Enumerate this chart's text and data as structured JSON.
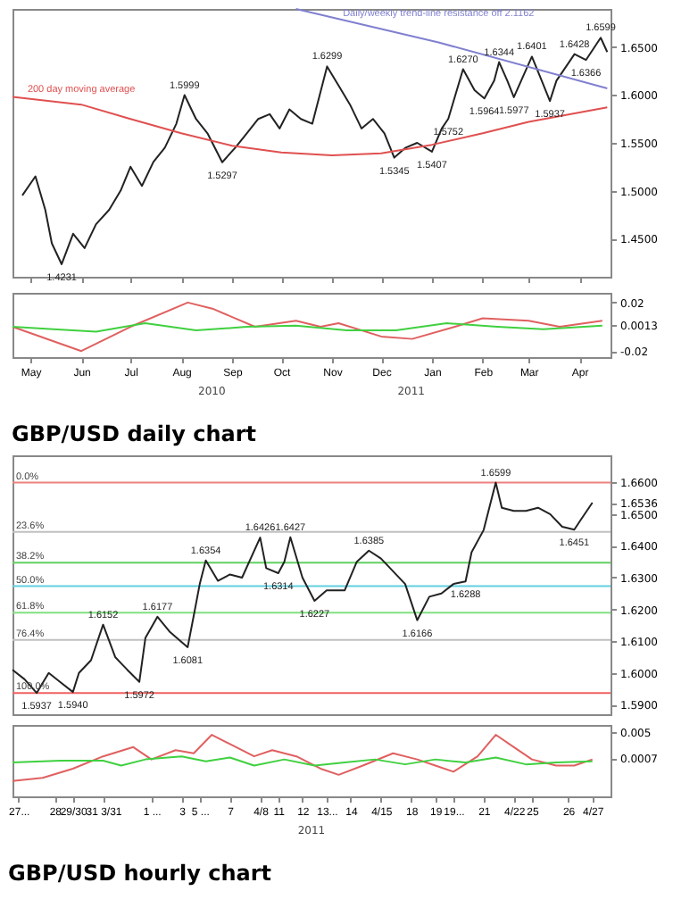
{
  "chart_data": [
    {
      "type": "line",
      "line_style": "solid",
      "xlim": [
        "2010-04-20",
        "2011-04-20"
      ],
      "ylim": [
        1.41,
        1.69
      ],
      "yticks": [
        {
          "value": 1.45,
          "label": "1.4500"
        },
        {
          "value": 1.5,
          "label": "1.5000"
        },
        {
          "value": 1.55,
          "label": "1.5500"
        },
        {
          "value": 1.6,
          "label": "1.6000"
        },
        {
          "value": 1.65,
          "label": "1.6500"
        }
      ],
      "xticks": [
        {
          "value": "2010-05-01",
          "label": null
        },
        {
          "value": "2010-06-01",
          "label": null
        },
        {
          "value": "2010-07-01",
          "label": null
        },
        {
          "value": "2010-08-01",
          "label": null
        },
        {
          "value": "2010-09-01",
          "label": null
        },
        {
          "value": "2010-10-01",
          "label": null
        },
        {
          "value": "2010-11-01",
          "label": null
        },
        {
          "value": "2010-12-01",
          "label": null
        },
        {
          "value": "2011-01-01",
          "label": null
        },
        {
          "value": "2011-02-01",
          "label": null
        },
        {
          "value": "2011-03-01",
          "label": null
        },
        {
          "value": "2011-04-01",
          "label": null
        }
      ],
      "tick_labels": "y",
      "series": [
        {
          "color": "#222222",
          "x": [
            "2010-04-26",
            "2010-05-04",
            "2010-05-10",
            "2010-05-14",
            "2010-05-20",
            "2010-05-27",
            "2010-06-03",
            "2010-06-10",
            "2010-06-18",
            "2010-06-25",
            "2010-07-01",
            "2010-07-08",
            "2010-07-15",
            "2010-07-22",
            "2010-07-29",
            "2010-08-03",
            "2010-08-10",
            "2010-08-17",
            "2010-08-26",
            "2010-09-03",
            "2010-09-10",
            "2010-09-17",
            "2010-09-24",
            "2010-09-30",
            "2010-10-06",
            "2010-10-13",
            "2010-10-20",
            "2010-10-29",
            "2010-11-05",
            "2010-11-12",
            "2010-11-19",
            "2010-11-26",
            "2010-12-03",
            "2010-12-09",
            "2010-12-16",
            "2010-12-23",
            "2011-01-01",
            "2011-01-07",
            "2011-01-11",
            "2011-01-20",
            "2011-01-27",
            "2011-02-02",
            "2011-02-08",
            "2011-02-11",
            "2011-02-16",
            "2011-02-20",
            "2011-03-03",
            "2011-03-09",
            "2011-03-14",
            "2011-03-18",
            "2011-03-22",
            "2011-03-29",
            "2011-04-05",
            "2011-04-14",
            "2011-04-18"
          ],
          "values": [
            1.495,
            1.515,
            1.48,
            1.445,
            1.4231,
            1.455,
            1.44,
            1.465,
            1.48,
            1.5,
            1.525,
            1.505,
            1.53,
            1.545,
            1.57,
            1.5999,
            1.575,
            1.56,
            1.5297,
            1.545,
            1.56,
            1.575,
            1.58,
            1.565,
            1.585,
            1.575,
            1.57,
            1.6299,
            1.61,
            1.59,
            1.565,
            1.575,
            1.56,
            1.5345,
            1.545,
            1.55,
            1.5407,
            1.565,
            1.5752,
            1.627,
            1.605,
            1.5964,
            1.615,
            1.6344,
            1.615,
            1.5977,
            1.6401,
            1.615,
            1.5937,
            1.615,
            1.625,
            1.6428,
            1.6366,
            1.6599,
            1.645
          ]
        },
        {
          "name": "200 day moving average",
          "color": "#e05050",
          "x": [
            "2010-04-20",
            "2010-06-01",
            "2010-07-01",
            "2010-08-01",
            "2010-09-01",
            "2010-10-01",
            "2010-11-01",
            "2010-12-01",
            "2011-01-01",
            "2011-02-01",
            "2011-03-01",
            "2011-04-18"
          ],
          "values": [
            1.598,
            1.59,
            1.575,
            1.56,
            1.547,
            1.54,
            1.537,
            1.539,
            1.548,
            1.56,
            1.572,
            1.587
          ]
        },
        {
          "name": "Daily/weekly trend-line resistance off 2.1162",
          "color": "#8080d0",
          "x": [
            "2010-10-10",
            "2011-01-05",
            "2011-04-18"
          ],
          "values": [
            1.69,
            1.655,
            1.607
          ]
        }
      ],
      "annotations": [
        {
          "text": "1.4231",
          "x": "2010-05-20",
          "y": 1.4231
        },
        {
          "text": "1.5999",
          "x": "2010-08-03",
          "y": 1.5999
        },
        {
          "text": "1.5297",
          "x": "2010-08-26",
          "y": 1.5297
        },
        {
          "text": "1.6299",
          "x": "2010-10-29",
          "y": 1.6299
        },
        {
          "text": "1.5345",
          "x": "2010-12-09",
          "y": 1.5345
        },
        {
          "text": "1.5407",
          "x": "2011-01-01",
          "y": 1.5407
        },
        {
          "text": "1.5752",
          "x": "2011-01-11",
          "y": 1.5752
        },
        {
          "text": "1.6270",
          "x": "2011-01-20",
          "y": 1.627
        },
        {
          "text": "1.5964",
          "x": "2011-02-02",
          "y": 1.5964
        },
        {
          "text": "1.6344",
          "x": "2011-02-11",
          "y": 1.6344
        },
        {
          "text": "1.5977",
          "x": "2011-02-20",
          "y": 1.5977
        },
        {
          "text": "1.6401",
          "x": "2011-03-03",
          "y": 1.6401
        },
        {
          "text": "1.5937",
          "x": "2011-03-14",
          "y": 1.5937
        },
        {
          "text": "1.6428",
          "x": "2011-03-29",
          "y": 1.6428
        },
        {
          "text": "1.6366",
          "x": "2011-04-05",
          "y": 1.6366
        },
        {
          "text": "1.6599",
          "x": "2011-04-14",
          "y": 1.6599
        }
      ]
    },
    {
      "type": "line",
      "line_style": "solid",
      "title": "GBP/USD daily chart",
      "xlim": [
        "2010-04-20",
        "2011-04-20"
      ],
      "ylim": [
        -0.025,
        0.028
      ],
      "yticks": [
        -0.02,
        {
          "value": 0.0013,
          "label": "0.0013"
        },
        0.02
      ],
      "xticks": [
        {
          "value": "2010-05-01",
          "label": "May"
        },
        {
          "value": "2010-06-01",
          "label": "Jun"
        },
        {
          "value": "2010-07-01",
          "label": "Jul"
        },
        {
          "value": "2010-08-01",
          "label": "Aug"
        },
        {
          "value": "2010-09-01",
          "label": "Sep"
        },
        {
          "value": "2010-10-01",
          "label": "Oct"
        },
        {
          "value": "2010-11-01",
          "label": "Nov"
        },
        {
          "value": "2010-12-01",
          "label": "Dec"
        },
        {
          "value": "2011-01-01",
          "label": "Jan"
        },
        {
          "value": "2011-02-01",
          "label": "Feb"
        },
        {
          "value": "2011-03-01",
          "label": "Mar"
        },
        {
          "value": "2011-04-01",
          "label": "Apr"
        }
      ],
      "series": [
        {
          "color": "#e06060",
          "x": [
            "2010-04-20",
            "2010-06-01",
            "2010-07-01",
            "2010-08-05",
            "2010-08-20",
            "2010-09-15",
            "2010-10-10",
            "2010-10-25",
            "2010-11-05",
            "2010-12-01",
            "2010-12-20",
            "2011-01-15",
            "2011-02-01",
            "2011-03-01",
            "2011-03-20",
            "2011-04-15"
          ],
          "values": [
            0,
            -0.02,
            0,
            0.02,
            0.015,
            0,
            0.005,
            0,
            0.003,
            -0.008,
            -0.01,
            0,
            0.007,
            0.005,
            0,
            0.005
          ]
        },
        {
          "color": "#40d040",
          "x": [
            "2010-04-20",
            "2010-05-15",
            "2010-06-10",
            "2010-07-10",
            "2010-08-10",
            "2010-09-10",
            "2010-10-10",
            "2010-11-10",
            "2010-12-10",
            "2011-01-10",
            "2011-02-10",
            "2011-03-10",
            "2011-04-15"
          ],
          "values": [
            0,
            -0.002,
            -0.004,
            0.003,
            -0.003,
            0,
            0.001,
            -0.003,
            -0.003,
            0.003,
            0,
            -0.002,
            0.001
          ]
        }
      ],
      "annotations": [
        "2010",
        "2011"
      ]
    },
    {
      "type": "line",
      "line_style": "solid",
      "ylim": [
        1.587,
        1.6685
      ],
      "yticks": [
        {
          "value": 1.59,
          "label": "1.5900"
        },
        {
          "value": 1.6,
          "label": "1.6000"
        },
        {
          "value": 1.61,
          "label": "1.6100"
        },
        {
          "value": 1.62,
          "label": "1.6200"
        },
        {
          "value": 1.63,
          "label": "1.6300"
        },
        {
          "value": 1.64,
          "label": "1.6400"
        },
        {
          "value": 1.65,
          "label": "1.6500"
        },
        {
          "value": 1.66,
          "label": "1.6600"
        },
        {
          "value": 1.6536,
          "label": "1.6536"
        }
      ],
      "categories": [
        null,
        null,
        null,
        null,
        null,
        null,
        null,
        null,
        null,
        null,
        null,
        null,
        null,
        null,
        null,
        null,
        null,
        null,
        null,
        null,
        null,
        null,
        null,
        null,
        null,
        null,
        null,
        null,
        null,
        null,
        null,
        null,
        null,
        null,
        null,
        null,
        null,
        null,
        null,
        null,
        null,
        null,
        null,
        null,
        null,
        null,
        null,
        null,
        null,
        null,
        null,
        null,
        null,
        null,
        null,
        null,
        null,
        null,
        null,
        null,
        null,
        null,
        null,
        null,
        null,
        null,
        null,
        null,
        null,
        null,
        null,
        null,
        null,
        null,
        null,
        null,
        null,
        null,
        null,
        null,
        null,
        null,
        null,
        null,
        null,
        null,
        null,
        null,
        null,
        null,
        null,
        null,
        null,
        null,
        null,
        null,
        null,
        null,
        null,
        null
      ],
      "tick_labels": "y",
      "ref_lines": [
        {
          "axis": "y",
          "value": 1.6599,
          "color": "#f08080"
        },
        {
          "axis": "y",
          "value": 1.6444,
          "color": "#c0c0c0"
        },
        {
          "axis": "y",
          "value": 1.6347,
          "color": "#60d060"
        },
        {
          "axis": "y",
          "value": 1.6273,
          "color": "#60d0e0"
        },
        {
          "axis": "y",
          "value": 1.619,
          "color": "#80e080"
        },
        {
          "axis": "y",
          "value": 1.6104,
          "color": "#c0c0c0"
        },
        {
          "axis": "y",
          "value": 1.5937,
          "color": "#f06060"
        }
      ],
      "series": [
        {
          "color": "#222222",
          "values": [
            1.601,
            null,
            1.598,
            null,
            1.5937,
            null,
            1.6,
            null,
            1.597,
            null,
            1.594,
            1.6,
            null,
            1.604,
            null,
            1.6152,
            null,
            1.605,
            1.603,
            1.601,
            null,
            1.5972,
            1.611,
            null,
            1.6177,
            null,
            1.613,
            null,
            null,
            1.6081,
            1.618,
            1.628,
            1.6354,
            null,
            1.629,
            null,
            1.631,
            null,
            1.63,
            null,
            null,
            1.6426,
            1.633,
            null,
            1.6314,
            1.635,
            1.6427,
            null,
            1.63,
            null,
            1.6227,
            null,
            1.626,
            null,
            null,
            1.626,
            null,
            1.635,
            null,
            1.6385,
            null,
            1.636,
            null,
            1.632,
            null,
            1.628,
            null,
            1.6166,
            null,
            1.624,
            null,
            1.625,
            null,
            1.628,
            null,
            1.6288,
            1.638,
            null,
            1.645,
            null,
            1.6599,
            1.652,
            null,
            1.651,
            null,
            1.651,
            null,
            1.652,
            null,
            1.65,
            null,
            1.646,
            null,
            1.6451,
            1.648,
            null,
            1.6536,
            null,
            null,
            null
          ]
        }
      ],
      "annotations": [
        {
          "text": "0.0%",
          "y": 1.6599
        },
        {
          "text": "23.6%",
          "y": 1.6444
        },
        {
          "text": "38.2%",
          "y": 1.6347
        },
        {
          "text": "50.0%",
          "y": 1.6273
        },
        {
          "text": "61.8%",
          "y": 1.619
        },
        {
          "text": "76.4%",
          "y": 1.6104
        },
        {
          "text": "100.0%",
          "y": 1.5937
        },
        {
          "text": "1.5937",
          "y": 1.5937
        },
        {
          "text": "1.5940",
          "y": 1.594
        },
        {
          "text": "1.6152",
          "y": 1.6152
        },
        {
          "text": "1.5972",
          "y": 1.5972
        },
        {
          "text": "1.6177",
          "y": 1.6177
        },
        {
          "text": "1.6081",
          "y": 1.6081
        },
        {
          "text": "1.6354",
          "y": 1.6354
        },
        {
          "text": "1.6426",
          "y": 1.6426
        },
        {
          "text": "1.6314",
          "y": 1.6314
        },
        {
          "text": "1.6427",
          "y": 1.6427
        },
        {
          "text": "1.6227",
          "y": 1.6227
        },
        {
          "text": "1.6385",
          "y": 1.6385
        },
        {
          "text": "1.6166",
          "y": 1.6166
        },
        {
          "text": "1.6288",
          "y": 1.6288
        },
        {
          "text": "1.6599",
          "y": 1.6599
        },
        {
          "text": "1.6451",
          "y": 1.6451
        }
      ]
    },
    {
      "type": "line",
      "line_style": "solid",
      "title": "GBP/USD hourly chart",
      "ylim": [
        -0.0055,
        0.0061
      ],
      "yticks": [
        {
          "value": 0.0007,
          "label": "0.0007"
        },
        0.005
      ],
      "categories": [
        null,
        "27...",
        null,
        null,
        null,
        null,
        null,
        "28",
        null,
        null,
        "29/30",
        null,
        null,
        null,
        null,
        "31 3/31",
        null,
        null,
        null,
        null,
        null,
        null,
        null,
        "1 ...",
        null,
        null,
        null,
        null,
        "3",
        null,
        null,
        "5 ...",
        null,
        null,
        null,
        null,
        "7",
        null,
        null,
        null,
        null,
        "4/8",
        null,
        null,
        "11",
        null,
        null,
        null,
        "12",
        null,
        null,
        null,
        "13...",
        null,
        null,
        null,
        "14",
        null,
        null,
        null,
        null,
        "4/15",
        null,
        null,
        null,
        null,
        "18",
        null,
        null,
        null,
        "19",
        null,
        null,
        "19...",
        null,
        null,
        null,
        null,
        "21",
        null,
        null,
        null,
        null,
        "4/22",
        null,
        null,
        "25",
        null,
        null,
        null,
        null,
        null,
        "26",
        null,
        null,
        null,
        "4/27",
        null,
        null,
        null
      ],
      "series": [
        {
          "color": "#e06060",
          "values": [
            -0.003,
            null,
            null,
            null,
            null,
            -0.0025,
            null,
            null,
            null,
            null,
            -0.001,
            null,
            null,
            null,
            null,
            0.001,
            null,
            null,
            null,
            null,
            0.0025,
            null,
            null,
            0.0005,
            null,
            null,
            null,
            0.002,
            null,
            null,
            0.0015,
            null,
            null,
            0.0045,
            null,
            null,
            0.003,
            null,
            null,
            null,
            0.001,
            null,
            null,
            0.002,
            null,
            null,
            null,
            0.001,
            null,
            null,
            null,
            -0.001,
            null,
            null,
            -0.002,
            null,
            null,
            null,
            -0.0005,
            null,
            null,
            null,
            null,
            0.0015,
            null,
            null,
            null,
            0.0005,
            null,
            null,
            -0.0005,
            null,
            null,
            -0.0015,
            null,
            null,
            null,
            0.001,
            null,
            null,
            0.0045,
            null,
            null,
            0.0025,
            null,
            null,
            0.0005,
            null,
            null,
            null,
            -0.0005,
            null,
            null,
            -0.0005,
            null,
            null,
            0.0005,
            null,
            null,
            null
          ]
        },
        {
          "color": "#40d040",
          "values": [
            0,
            null,
            null,
            null,
            null,
            null,
            null,
            null,
            0.0003,
            null,
            null,
            null,
            null,
            null,
            null,
            0.0003,
            null,
            null,
            -0.0005,
            null,
            null,
            null,
            0.0005,
            null,
            null,
            null,
            null,
            null,
            0.001,
            null,
            null,
            null,
            0.0002,
            null,
            null,
            null,
            0.0008,
            null,
            null,
            null,
            -0.0005,
            null,
            null,
            null,
            null,
            0.0005,
            null,
            null,
            null,
            null,
            -0.0005,
            null,
            null,
            null,
            null,
            0,
            null,
            null,
            null,
            null,
            0.0005,
            null,
            null,
            null,
            null,
            -0.0003,
            null,
            null,
            null,
            null,
            0.0005,
            null,
            null,
            null,
            null,
            0,
            null,
            null,
            null,
            null,
            0.0008,
            null,
            null,
            null,
            null,
            -0.0003,
            null,
            null,
            null,
            null,
            0,
            null,
            null,
            null,
            null,
            null,
            0.0002,
            null,
            null,
            null
          ]
        }
      ],
      "annotations": [
        "2011"
      ]
    }
  ]
}
